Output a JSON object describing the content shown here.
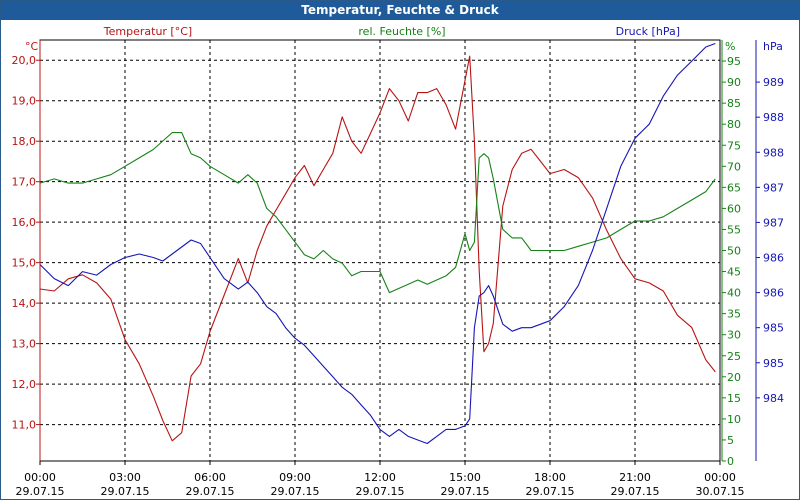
{
  "window": {
    "title": "Temperatur, Feuchte & Druck"
  },
  "colors": {
    "temperature": "#b81414",
    "humidity": "#168216",
    "pressure": "#1616b4",
    "grid": "#000000",
    "title_bar": "#1f5b9b",
    "axis_text": "#000000"
  },
  "chart_data": {
    "type": "line",
    "title": "Temperatur, Feuchte & Druck",
    "grid": true,
    "x_axis": {
      "range": [
        "29.07.15 00:00",
        "30.07.15 00:00"
      ],
      "ticks": [
        {
          "time": "00:00",
          "date": "29.07.15"
        },
        {
          "time": "03:00",
          "date": "29.07.15"
        },
        {
          "time": "06:00",
          "date": "29.07.15"
        },
        {
          "time": "09:00",
          "date": "29.07.15"
        },
        {
          "time": "12:00",
          "date": "29.07.15"
        },
        {
          "time": "15:00",
          "date": "29.07.15"
        },
        {
          "time": "18:00",
          "date": "29.07.15"
        },
        {
          "time": "21:00",
          "date": "29.07.15"
        },
        {
          "time": "00:00",
          "date": "30.07.15"
        }
      ]
    },
    "axes": {
      "temperature": {
        "unit": "°C",
        "range": [
          10.1,
          20.5
        ],
        "ticks": [
          "20,0",
          "19,0",
          "18,0",
          "17,0",
          "16,0",
          "15,0",
          "14,0",
          "13,0",
          "12,0",
          "11,0"
        ]
      },
      "humidity": {
        "unit": "%",
        "range": [
          0,
          100
        ],
        "ticks": [
          "95",
          "90",
          "85",
          "80",
          "75",
          "70",
          "65",
          "60",
          "55",
          "50",
          "45",
          "40",
          "35",
          "30",
          "25",
          "20",
          "15",
          "10",
          "5",
          "0"
        ]
      },
      "pressure": {
        "unit": "hPa",
        "range": [
          983.6,
          989.6
        ],
        "ticks": [
          "989",
          "988",
          "988",
          "987",
          "987",
          "986",
          "986",
          "985",
          "985",
          "984"
        ]
      }
    },
    "series": [
      {
        "name": "Temperatur [°C]",
        "axis": "temperature",
        "x": [
          "00:00",
          "00:30",
          "01:00",
          "01:30",
          "02:00",
          "02:30",
          "03:00",
          "03:30",
          "04:00",
          "04:20",
          "04:40",
          "05:00",
          "05:20",
          "05:40",
          "06:00",
          "06:30",
          "07:00",
          "07:20",
          "07:40",
          "08:00",
          "08:20",
          "08:40",
          "09:00",
          "09:20",
          "09:40",
          "10:00",
          "10:20",
          "10:40",
          "11:00",
          "11:20",
          "11:40",
          "12:00",
          "12:20",
          "12:40",
          "13:00",
          "13:20",
          "13:40",
          "14:00",
          "14:20",
          "14:40",
          "15:00",
          "15:10",
          "15:20",
          "15:30",
          "15:40",
          "15:50",
          "16:00",
          "16:20",
          "16:40",
          "17:00",
          "17:20",
          "17:40",
          "18:00",
          "18:30",
          "19:00",
          "19:30",
          "20:00",
          "20:30",
          "21:00",
          "21:30",
          "22:00",
          "22:30",
          "23:00",
          "23:30",
          "23:50"
        ],
        "y": [
          14.35,
          14.3,
          14.6,
          14.7,
          14.5,
          14.1,
          13.1,
          12.5,
          11.7,
          11.1,
          10.6,
          10.8,
          12.2,
          12.5,
          13.3,
          14.2,
          15.1,
          14.5,
          15.3,
          15.9,
          16.3,
          16.7,
          17.1,
          17.4,
          16.9,
          17.3,
          17.7,
          18.6,
          18.0,
          17.7,
          18.2,
          18.7,
          19.3,
          19.0,
          18.5,
          19.2,
          19.2,
          19.3,
          18.9,
          18.3,
          19.5,
          20.1,
          18.0,
          14.8,
          12.8,
          13.0,
          13.5,
          16.4,
          17.3,
          17.7,
          17.8,
          17.5,
          17.2,
          17.3,
          17.1,
          16.6,
          15.8,
          15.1,
          14.6,
          14.5,
          14.3,
          13.7,
          13.4,
          12.6,
          12.3
        ]
      },
      {
        "name": "rel. Feuchte [%]",
        "axis": "humidity",
        "x": [
          "00:00",
          "00:30",
          "01:00",
          "01:30",
          "02:00",
          "02:30",
          "03:00",
          "03:30",
          "04:00",
          "04:20",
          "04:40",
          "05:00",
          "05:20",
          "05:40",
          "06:00",
          "06:30",
          "07:00",
          "07:20",
          "07:40",
          "08:00",
          "08:20",
          "08:40",
          "09:00",
          "09:20",
          "09:40",
          "10:00",
          "10:20",
          "10:40",
          "11:00",
          "11:20",
          "11:40",
          "12:00",
          "12:20",
          "12:40",
          "13:00",
          "13:20",
          "13:40",
          "14:00",
          "14:20",
          "14:40",
          "15:00",
          "15:10",
          "15:20",
          "15:30",
          "15:40",
          "15:50",
          "16:00",
          "16:20",
          "16:40",
          "17:00",
          "17:20",
          "17:40",
          "18:00",
          "18:30",
          "19:00",
          "19:30",
          "20:00",
          "20:30",
          "21:00",
          "21:30",
          "22:00",
          "22:30",
          "23:00",
          "23:30",
          "23:50"
        ],
        "y": [
          66,
          67,
          66,
          66,
          67,
          68,
          70,
          72,
          74,
          76,
          78,
          78,
          73,
          72,
          70,
          68,
          66,
          68,
          66,
          60,
          58,
          55,
          52,
          49,
          48,
          50,
          48,
          47,
          44,
          45,
          45,
          45,
          40,
          41,
          42,
          43,
          42,
          43,
          44,
          46,
          54,
          50,
          52,
          72,
          73,
          72,
          67,
          55,
          53,
          53,
          50,
          50,
          50,
          50,
          51,
          52,
          53,
          55,
          57,
          57,
          58,
          60,
          62,
          64,
          67
        ]
      },
      {
        "name": "Druck [hPa]",
        "axis": "pressure",
        "x": [
          "00:00",
          "00:30",
          "01:00",
          "01:30",
          "02:00",
          "02:30",
          "03:00",
          "03:30",
          "04:00",
          "04:20",
          "04:40",
          "05:00",
          "05:20",
          "05:40",
          "06:00",
          "06:30",
          "07:00",
          "07:20",
          "07:40",
          "08:00",
          "08:20",
          "08:40",
          "09:00",
          "09:20",
          "09:40",
          "10:00",
          "10:20",
          "10:40",
          "11:00",
          "11:20",
          "11:40",
          "12:00",
          "12:20",
          "12:40",
          "13:00",
          "13:20",
          "13:40",
          "14:00",
          "14:20",
          "14:40",
          "15:00",
          "15:10",
          "15:20",
          "15:30",
          "15:40",
          "15:50",
          "16:00",
          "16:20",
          "16:40",
          "17:00",
          "17:20",
          "17:40",
          "18:00",
          "18:30",
          "19:00",
          "19:30",
          "20:00",
          "20:30",
          "21:00",
          "21:30",
          "22:00",
          "22:30",
          "23:00",
          "23:30",
          "23:50"
        ],
        "y": [
          986.4,
          986.2,
          986.1,
          986.3,
          986.25,
          986.4,
          986.5,
          986.55,
          986.5,
          986.45,
          986.55,
          986.65,
          986.75,
          986.7,
          986.5,
          986.2,
          986.05,
          986.15,
          986.0,
          985.8,
          985.7,
          985.5,
          985.35,
          985.25,
          985.1,
          984.95,
          984.8,
          984.65,
          984.55,
          984.4,
          984.25,
          984.05,
          983.95,
          984.05,
          983.95,
          983.9,
          983.85,
          983.95,
          984.05,
          984.05,
          984.1,
          984.2,
          985.5,
          985.95,
          986.0,
          986.1,
          985.95,
          985.55,
          985.45,
          985.5,
          985.5,
          985.55,
          985.6,
          985.8,
          986.1,
          986.6,
          987.2,
          987.8,
          988.2,
          988.4,
          988.8,
          989.1,
          989.3,
          989.5,
          989.55
        ]
      }
    ]
  }
}
